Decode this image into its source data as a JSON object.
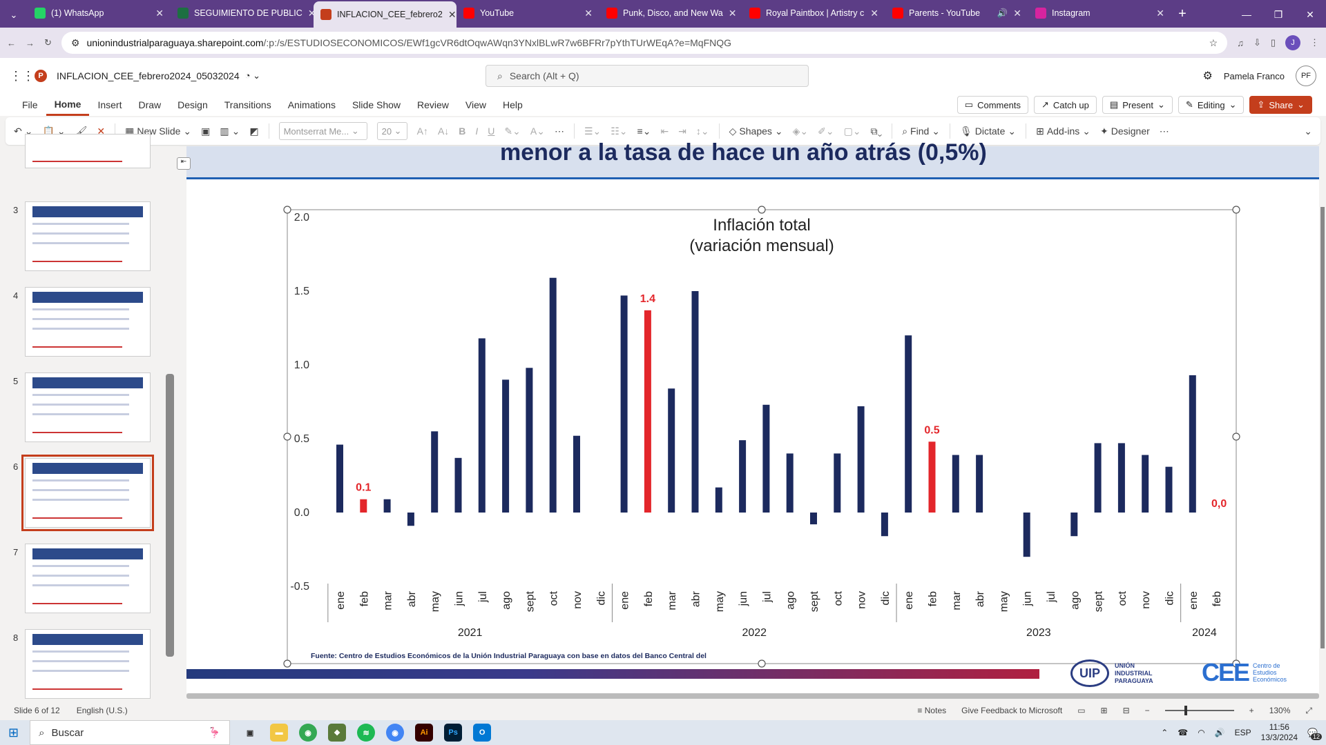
{
  "browser": {
    "tabs": [
      {
        "title": "(1) WhatsApp",
        "icon": "whatsapp-icon",
        "color": "#25d366"
      },
      {
        "title": "SEGUIMIENTO DE PUBLIC",
        "icon": "excel-icon",
        "color": "#1d6f42"
      },
      {
        "title": "INFLACION_CEE_febrero2",
        "icon": "powerpoint-icon",
        "color": "#c43e1c",
        "active": true
      },
      {
        "title": "YouTube",
        "icon": "youtube-icon",
        "color": "#ff0000"
      },
      {
        "title": "Punk, Disco, and New Wa",
        "icon": "youtube-icon",
        "color": "#ff0000"
      },
      {
        "title": "Royal Paintbox | Artistry c",
        "icon": "youtube-icon",
        "color": "#ff0000"
      },
      {
        "title": "Parents - YouTube",
        "icon": "youtube-icon",
        "color": "#ff0000",
        "audio": "🔊"
      },
      {
        "title": "Instagram",
        "icon": "instagram-icon",
        "color": "#d6249f"
      }
    ],
    "url_host": "unionindustrialparaguaya.sharepoint.com",
    "url_path": "/:p:/s/ESTUDIOSECONOMICOS/EWf1gcVR6dtOqwAWqn3YNxlBLwR7w6BFRr7pYthTUrWEqA?e=MqFNQG",
    "profile_initial": "J"
  },
  "office": {
    "doc_title": "INFLACION_CEE_febrero2024_05032024",
    "search_placeholder": "Search (Alt + Q)",
    "user_name": "Pamela Franco",
    "user_initials": "PF"
  },
  "menu": {
    "items": [
      "File",
      "Home",
      "Insert",
      "Draw",
      "Design",
      "Transitions",
      "Animations",
      "Slide Show",
      "Review",
      "View",
      "Help"
    ],
    "active": "Home",
    "comments": "Comments",
    "catchup": "Catch up",
    "present": "Present",
    "editing": "Editing",
    "share": "Share"
  },
  "toolbar": {
    "new_slide": "New Slide",
    "font": "Montserrat Me...",
    "size": "20",
    "shapes": "Shapes",
    "find": "Find",
    "dictate": "Dictate",
    "addins": "Add-ins",
    "designer": "Designer"
  },
  "thumbnails": [
    "3",
    "4",
    "5",
    "6",
    "7",
    "8"
  ],
  "selected_slide": "6",
  "slide": {
    "header_text": "menor a la tasa de hace un año atrás (0,5%)",
    "source": "Fuente: Centro de Estudios Económicos de la Unión Industrial Paraguaya con base en datos del Banco Central del",
    "uip_abbr": "UIP",
    "uip_name": [
      "UNIÓN",
      "INDUSTRIAL",
      "PARAGUAYA"
    ],
    "cee_abbr": "CEE",
    "cee_name": [
      "Centro de",
      "Estudios",
      "Económicos"
    ]
  },
  "chart_data": {
    "type": "bar",
    "title": "Inflación total",
    "subtitle": "(variación mensual)",
    "ylim": [
      -0.5,
      2.0
    ],
    "yticks": [
      "2.0",
      "1.5",
      "1.0",
      "0.5",
      "0.0",
      "-0.5"
    ],
    "categories": [
      "ene",
      "feb",
      "mar",
      "abr",
      "may",
      "jun",
      "jul",
      "ago",
      "sept",
      "oct",
      "nov",
      "dic",
      "ene",
      "feb",
      "mar",
      "abr",
      "may",
      "jun",
      "jul",
      "ago",
      "sept",
      "oct",
      "nov",
      "dic",
      "ene",
      "feb",
      "mar",
      "abr",
      "may",
      "jun",
      "jul",
      "ago",
      "sept",
      "oct",
      "nov",
      "dic",
      "ene",
      "feb"
    ],
    "values": [
      0.46,
      0.09,
      0.09,
      -0.09,
      0.55,
      0.37,
      1.18,
      0.9,
      0.98,
      1.59,
      0.52,
      0.0,
      1.47,
      1.37,
      0.84,
      1.5,
      0.17,
      0.49,
      0.73,
      0.4,
      -0.08,
      0.4,
      0.72,
      -0.16,
      1.2,
      0.48,
      0.39,
      0.39,
      0.0,
      -0.3,
      0.0,
      -0.16,
      0.47,
      0.47,
      0.39,
      0.31,
      0.93,
      0.0
    ],
    "highlight_indices": [
      1,
      13,
      25,
      37
    ],
    "data_labels": [
      {
        "index": 1,
        "text": "0.1"
      },
      {
        "index": 13,
        "text": "1.4"
      },
      {
        "index": 25,
        "text": "0.5"
      },
      {
        "index": 37,
        "text": "0,0"
      }
    ],
    "years": [
      {
        "label": "2021",
        "start": 0,
        "end": 11
      },
      {
        "label": "2022",
        "start": 12,
        "end": 23
      },
      {
        "label": "2023",
        "start": 24,
        "end": 35
      },
      {
        "label": "2024",
        "start": 36,
        "end": 37
      }
    ],
    "colors": {
      "bar": "#1c2a5e",
      "highlight": "#e3262b"
    }
  },
  "status": {
    "slide_info": "Slide 6 of 12",
    "language": "English (U.S.)",
    "notes": "Notes",
    "feedback": "Give Feedback to Microsoft",
    "zoom": "130%"
  },
  "taskbar": {
    "search": "Buscar",
    "lang": "ESP",
    "time": "11:56",
    "date": "13/3/2024",
    "notif": "12"
  }
}
